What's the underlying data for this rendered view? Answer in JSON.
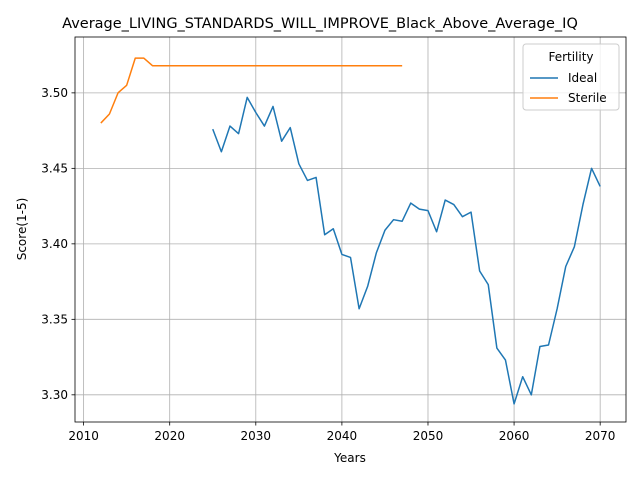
{
  "chart_data": {
    "type": "line",
    "title": "Average_LIVING_STANDARDS_WILL_IMPROVE_Black_Above_Average_IQ",
    "xlabel": "Years",
    "ylabel": "Score(1-5)",
    "xlim": [
      2009,
      2073
    ],
    "ylim": [
      3.282,
      3.537
    ],
    "xticks": [
      2010,
      2020,
      2030,
      2040,
      2050,
      2060,
      2070
    ],
    "yticks": [
      3.3,
      3.35,
      3.4,
      3.45,
      3.5
    ],
    "grid": true,
    "legend": {
      "title": "Fertility",
      "position": "top-right"
    },
    "series": [
      {
        "name": "Ideal",
        "color": "#1f77b4",
        "x": [
          2025,
          2026,
          2027,
          2028,
          2029,
          2030,
          2031,
          2032,
          2033,
          2034,
          2035,
          2036,
          2037,
          2038,
          2039,
          2040,
          2041,
          2042,
          2043,
          2044,
          2045,
          2046,
          2047,
          2048,
          2049,
          2050,
          2051,
          2052,
          2053,
          2054,
          2055,
          2056,
          2057,
          2058,
          2059,
          2060,
          2061,
          2062,
          2063,
          2064,
          2065,
          2066,
          2067,
          2068,
          2069,
          2070
        ],
        "values": [
          3.476,
          3.461,
          3.478,
          3.473,
          3.497,
          3.487,
          3.478,
          3.491,
          3.468,
          3.477,
          3.453,
          3.442,
          3.444,
          3.406,
          3.41,
          3.393,
          3.391,
          3.357,
          3.372,
          3.394,
          3.409,
          3.416,
          3.415,
          3.427,
          3.423,
          3.422,
          3.408,
          3.429,
          3.426,
          3.418,
          3.421,
          3.382,
          3.373,
          3.331,
          3.323,
          3.294,
          3.312,
          3.3,
          3.332,
          3.333,
          3.357,
          3.385,
          3.398,
          3.426,
          3.45,
          3.438
        ]
      },
      {
        "name": "Sterile",
        "color": "#ff7f0e",
        "x": [
          2012,
          2013,
          2014,
          2015,
          2016,
          2017,
          2018,
          2019,
          2020,
          2021,
          2022,
          2023,
          2024,
          2025,
          2026,
          2027,
          2028,
          2029,
          2030,
          2031,
          2032,
          2033,
          2034,
          2035,
          2036,
          2037,
          2038,
          2039,
          2040,
          2041,
          2042,
          2043,
          2044,
          2045,
          2046,
          2047
        ],
        "values": [
          3.48,
          3.486,
          3.5,
          3.505,
          3.523,
          3.523,
          3.518,
          3.518,
          3.518,
          3.518,
          3.518,
          3.518,
          3.518,
          3.518,
          3.518,
          3.518,
          3.518,
          3.518,
          3.518,
          3.518,
          3.518,
          3.518,
          3.518,
          3.518,
          3.518,
          3.518,
          3.518,
          3.518,
          3.518,
          3.518,
          3.518,
          3.518,
          3.518,
          3.518,
          3.518,
          3.518
        ]
      }
    ]
  }
}
